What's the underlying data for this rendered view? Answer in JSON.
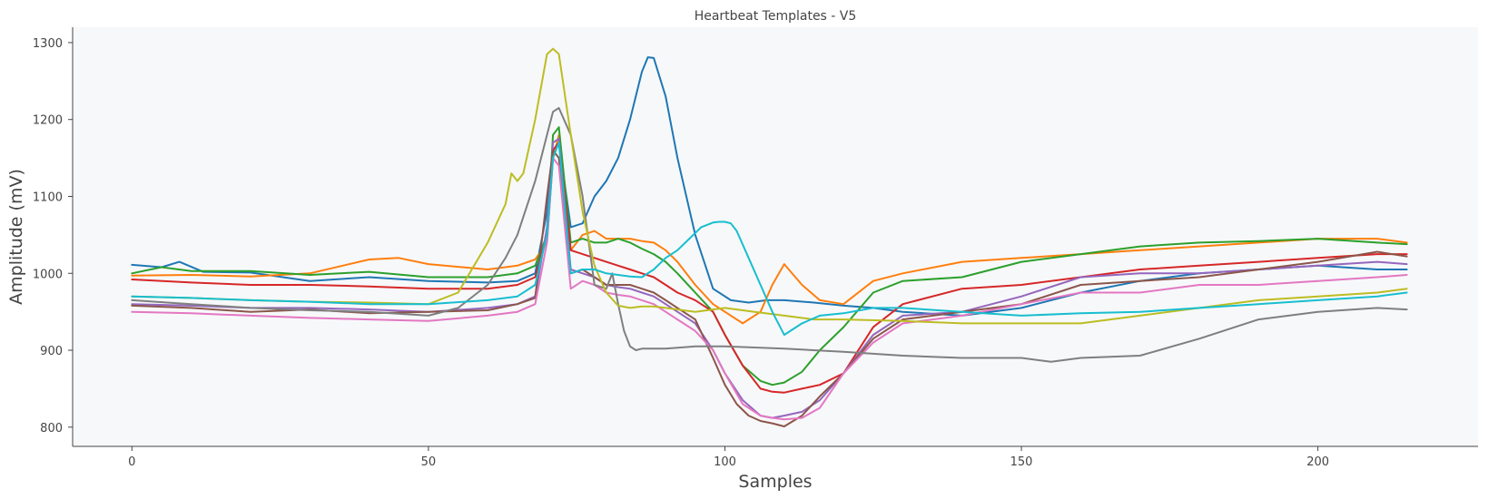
{
  "chart_data": {
    "type": "line",
    "title": "Heartbeat Templates - V5",
    "xlabel": "Samples",
    "ylabel": "Amplitude (mV)",
    "xlim": [
      -10,
      227
    ],
    "ylim": [
      775,
      1320
    ],
    "xticks": [
      0,
      50,
      100,
      150,
      200
    ],
    "yticks": [
      800,
      900,
      1000,
      1100,
      1200,
      1300
    ],
    "grid": false,
    "legend": "none",
    "background": "#f7f8fa",
    "series": [
      {
        "color": "#1f77b4",
        "x": [
          0,
          5,
          8,
          12,
          20,
          30,
          40,
          50,
          60,
          65,
          68,
          70,
          71,
          72,
          74,
          76,
          78,
          80,
          82,
          84,
          86,
          87,
          88,
          90,
          92,
          95,
          98,
          101,
          104,
          107,
          110,
          115,
          120,
          125,
          130,
          140,
          150,
          160,
          170,
          180,
          190,
          200,
          210,
          215
        ],
        "y": [
          1011,
          1008,
          1015,
          1002,
          1001,
          990,
          995,
          990,
          988,
          990,
          1000,
          1080,
          1160,
          1170,
          1060,
          1065,
          1100,
          1120,
          1150,
          1200,
          1262,
          1281,
          1280,
          1230,
          1150,
          1050,
          980,
          965,
          962,
          965,
          965,
          962,
          958,
          955,
          950,
          945,
          955,
          975,
          990,
          1000,
          1005,
          1010,
          1005,
          1005
        ]
      },
      {
        "color": "#ff7f0e",
        "x": [
          0,
          10,
          20,
          30,
          40,
          45,
          50,
          60,
          65,
          68,
          70,
          71,
          72,
          74,
          76,
          78,
          80,
          82,
          84,
          86,
          88,
          90,
          92,
          95,
          98,
          100,
          103,
          106,
          108,
          110,
          113,
          116,
          120,
          125,
          130,
          140,
          150,
          160,
          170,
          180,
          190,
          200,
          210,
          215
        ],
        "y": [
          997,
          998,
          996,
          1000,
          1018,
          1020,
          1012,
          1005,
          1010,
          1018,
          1040,
          1150,
          1180,
          1030,
          1050,
          1055,
          1045,
          1045,
          1045,
          1042,
          1040,
          1030,
          1015,
          985,
          960,
          950,
          935,
          950,
          985,
          1012,
          985,
          965,
          960,
          990,
          1000,
          1015,
          1020,
          1025,
          1030,
          1035,
          1040,
          1045,
          1045,
          1040
        ]
      },
      {
        "color": "#2ca02c",
        "x": [
          0,
          5,
          10,
          20,
          30,
          40,
          50,
          60,
          65,
          68,
          70,
          71,
          72,
          74,
          76,
          78,
          80,
          82,
          84,
          86,
          88,
          90,
          92,
          95,
          98,
          100,
          103,
          106,
          108,
          110,
          113,
          116,
          120,
          125,
          130,
          140,
          150,
          160,
          170,
          180,
          190,
          200,
          210,
          215
        ],
        "y": [
          1000,
          1008,
          1003,
          1003,
          998,
          1002,
          995,
          995,
          1000,
          1010,
          1050,
          1180,
          1190,
          1040,
          1045,
          1040,
          1040,
          1045,
          1040,
          1032,
          1025,
          1015,
          1000,
          975,
          950,
          920,
          880,
          860,
          855,
          858,
          872,
          900,
          930,
          975,
          990,
          995,
          1015,
          1025,
          1035,
          1040,
          1042,
          1045,
          1040,
          1038
        ]
      },
      {
        "color": "#d62728",
        "x": [
          0,
          10,
          20,
          30,
          40,
          50,
          60,
          65,
          68,
          70,
          71,
          72,
          74,
          76,
          78,
          80,
          82,
          84,
          86,
          88,
          90,
          92,
          95,
          98,
          100,
          103,
          106,
          108,
          110,
          113,
          116,
          120,
          125,
          130,
          140,
          150,
          160,
          170,
          180,
          190,
          200,
          210,
          215
        ],
        "y": [
          992,
          988,
          985,
          985,
          983,
          980,
          980,
          985,
          995,
          1050,
          1160,
          1170,
          1030,
          1025,
          1020,
          1015,
          1010,
          1005,
          1000,
          995,
          985,
          975,
          965,
          950,
          920,
          880,
          850,
          846,
          845,
          850,
          855,
          870,
          930,
          960,
          980,
          985,
          995,
          1005,
          1010,
          1015,
          1020,
          1025,
          1025
        ]
      },
      {
        "color": "#9467bd",
        "x": [
          0,
          10,
          20,
          30,
          40,
          50,
          60,
          65,
          68,
          70,
          71,
          72,
          74,
          76,
          78,
          80,
          82,
          84,
          86,
          88,
          90,
          92,
          95,
          98,
          100,
          103,
          106,
          108,
          110,
          113,
          116,
          120,
          125,
          130,
          140,
          150,
          160,
          170,
          180,
          190,
          200,
          210,
          215
        ],
        "y": [
          960,
          958,
          955,
          955,
          953,
          950,
          955,
          960,
          970,
          1060,
          1170,
          1175,
          1005,
          1000,
          995,
          985,
          982,
          980,
          975,
          970,
          960,
          950,
          935,
          900,
          870,
          835,
          815,
          812,
          815,
          820,
          835,
          870,
          920,
          945,
          950,
          970,
          995,
          1000,
          1000,
          1005,
          1010,
          1015,
          1012
        ]
      },
      {
        "color": "#8c564b",
        "x": [
          0,
          10,
          20,
          30,
          40,
          50,
          60,
          65,
          68,
          70,
          71,
          72,
          74,
          76,
          78,
          80,
          82,
          84,
          86,
          88,
          90,
          92,
          95,
          98,
          100,
          102,
          104,
          106,
          108,
          110,
          113,
          116,
          120,
          125,
          130,
          140,
          150,
          160,
          170,
          180,
          190,
          200,
          210,
          215
        ],
        "y": [
          958,
          955,
          950,
          953,
          948,
          950,
          952,
          960,
          968,
          1100,
          1160,
          1150,
          1000,
          1005,
          995,
          985,
          985,
          985,
          980,
          975,
          965,
          955,
          940,
          890,
          855,
          830,
          815,
          808,
          805,
          801,
          815,
          840,
          870,
          915,
          940,
          950,
          960,
          985,
          990,
          995,
          1005,
          1015,
          1028,
          1022
        ]
      },
      {
        "color": "#e377c2",
        "x": [
          0,
          10,
          20,
          30,
          40,
          50,
          60,
          65,
          68,
          70,
          71,
          72,
          74,
          76,
          78,
          80,
          82,
          84,
          86,
          88,
          90,
          92,
          95,
          98,
          100,
          103,
          106,
          108,
          110,
          113,
          116,
          120,
          125,
          130,
          140,
          150,
          160,
          170,
          180,
          190,
          200,
          210,
          215
        ],
        "y": [
          950,
          948,
          945,
          942,
          940,
          938,
          945,
          950,
          960,
          1040,
          1150,
          1140,
          980,
          990,
          985,
          975,
          972,
          970,
          965,
          960,
          950,
          940,
          925,
          900,
          870,
          830,
          815,
          812,
          810,
          812,
          825,
          870,
          910,
          935,
          945,
          960,
          975,
          975,
          985,
          985,
          990,
          995,
          998
        ]
      },
      {
        "color": "#7f7f7f",
        "x": [
          0,
          10,
          20,
          30,
          40,
          50,
          55,
          60,
          63,
          65,
          68,
          70,
          71,
          72,
          74,
          76,
          78,
          80,
          81,
          82,
          83,
          84,
          85,
          86,
          88,
          90,
          95,
          100,
          110,
          120,
          130,
          140,
          150,
          155,
          160,
          170,
          180,
          190,
          200,
          210,
          215
        ],
        "y": [
          965,
          960,
          955,
          952,
          950,
          945,
          955,
          985,
          1020,
          1050,
          1120,
          1180,
          1210,
          1215,
          1180,
          1100,
          985,
          980,
          1000,
          960,
          925,
          905,
          900,
          902,
          902,
          902,
          905,
          905,
          902,
          898,
          893,
          890,
          890,
          885,
          890,
          893,
          915,
          940,
          950,
          955,
          953
        ]
      },
      {
        "color": "#bcbd22",
        "x": [
          0,
          10,
          20,
          30,
          40,
          50,
          55,
          60,
          63,
          64,
          65,
          66,
          68,
          70,
          71,
          72,
          74,
          76,
          78,
          80,
          82,
          84,
          86,
          88,
          90,
          95,
          100,
          105,
          110,
          115,
          120,
          130,
          140,
          150,
          160,
          170,
          180,
          190,
          200,
          210,
          215
        ],
        "y": [
          970,
          968,
          965,
          963,
          962,
          960,
          975,
          1040,
          1090,
          1130,
          1120,
          1130,
          1200,
          1285,
          1292,
          1285,
          1180,
          1080,
          1010,
          975,
          958,
          955,
          957,
          957,
          955,
          950,
          955,
          950,
          945,
          940,
          940,
          938,
          935,
          935,
          935,
          945,
          955,
          965,
          970,
          975,
          980
        ]
      },
      {
        "color": "#17becf",
        "x": [
          0,
          10,
          20,
          30,
          40,
          50,
          60,
          65,
          68,
          70,
          71,
          72,
          74,
          76,
          78,
          80,
          82,
          84,
          86,
          88,
          90,
          92,
          94,
          96,
          98,
          99,
          100,
          101,
          102,
          104,
          106,
          108,
          110,
          113,
          116,
          120,
          125,
          130,
          140,
          150,
          160,
          170,
          180,
          190,
          200,
          210,
          215
        ],
        "y": [
          970,
          968,
          965,
          963,
          960,
          960,
          965,
          970,
          985,
          1050,
          1150,
          1170,
          1000,
          1005,
          1005,
          1000,
          998,
          996,
          995,
          1005,
          1020,
          1030,
          1045,
          1060,
          1066,
          1067,
          1067,
          1065,
          1055,
          1020,
          985,
          950,
          920,
          935,
          945,
          948,
          955,
          955,
          950,
          945,
          948,
          950,
          955,
          960,
          965,
          970,
          975
        ]
      }
    ]
  }
}
